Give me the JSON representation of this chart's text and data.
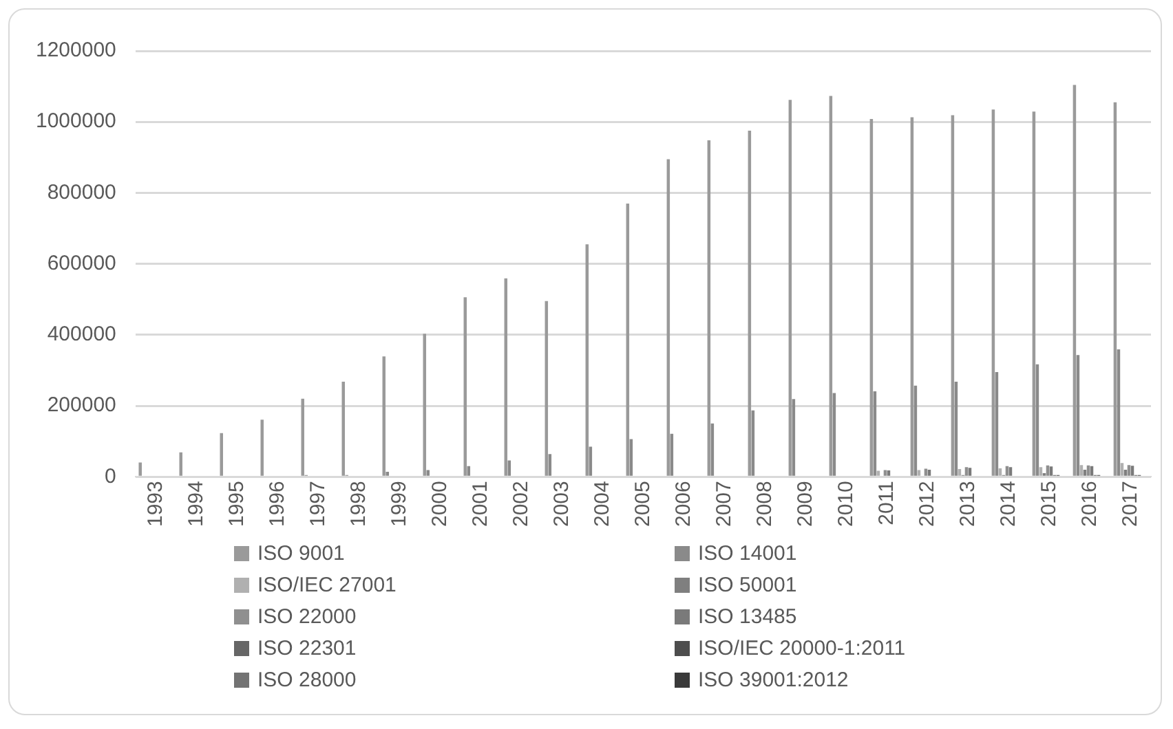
{
  "chart_data": {
    "type": "bar",
    "categories": [
      "1993",
      "1994",
      "1995",
      "1996",
      "1997",
      "1998",
      "1999",
      "2000",
      "2001",
      "2002",
      "2003",
      "2004",
      "2005",
      "2006",
      "2007",
      "2008",
      "2009",
      "2010",
      "2011",
      "2012",
      "2013",
      "2014",
      "2015",
      "2016",
      "2017"
    ],
    "series": [
      {
        "name": "ISO 9001",
        "color": "#9a9a9a",
        "values": [
          40000,
          69000,
          123000,
          161000,
          220000,
          268000,
          339000,
          403000,
          506000,
          559000,
          495000,
          655000,
          770000,
          895000,
          948000,
          975000,
          1062000,
          1073000,
          1008000,
          1013000,
          1019000,
          1035000,
          1029000,
          1104000,
          1055000
        ]
      },
      {
        "name": "ISO 14001",
        "color": "#8a8a8a",
        "values": [
          null,
          null,
          null,
          null,
          5000,
          5000,
          14000,
          19000,
          30000,
          46000,
          64000,
          85000,
          106000,
          121000,
          150000,
          187000,
          219000,
          236000,
          241000,
          257000,
          268000,
          295000,
          317000,
          343000,
          359000
        ]
      },
      {
        "name": "ISO/IEC 27001",
        "color": "#b0b0b0",
        "values": [
          null,
          null,
          null,
          null,
          null,
          null,
          null,
          null,
          null,
          null,
          null,
          null,
          null,
          null,
          null,
          null,
          null,
          null,
          17000,
          19000,
          22000,
          24000,
          27000,
          33000,
          39000
        ]
      },
      {
        "name": "ISO 50001",
        "color": "#7f7f7f",
        "values": [
          null,
          null,
          null,
          null,
          null,
          null,
          null,
          null,
          null,
          null,
          null,
          null,
          null,
          null,
          null,
          null,
          null,
          null,
          null,
          null,
          5000,
          5000,
          10000,
          20000,
          20000
        ]
      },
      {
        "name": "ISO 22000",
        "color": "#8f8f8f",
        "values": [
          null,
          null,
          null,
          null,
          null,
          null,
          null,
          null,
          null,
          null,
          null,
          null,
          null,
          null,
          null,
          null,
          null,
          null,
          19000,
          23000,
          27000,
          30000,
          32000,
          32000,
          33000
        ]
      },
      {
        "name": "ISO 13485",
        "color": "#7a7a7a",
        "values": [
          null,
          null,
          null,
          null,
          null,
          null,
          null,
          null,
          null,
          null,
          null,
          null,
          null,
          null,
          null,
          null,
          null,
          null,
          18000,
          20000,
          25000,
          27000,
          29000,
          30000,
          31000
        ]
      },
      {
        "name": "ISO 22301",
        "color": "#666666",
        "values": [
          null,
          null,
          null,
          null,
          null,
          null,
          null,
          null,
          null,
          null,
          null,
          null,
          null,
          null,
          null,
          null,
          null,
          null,
          null,
          null,
          null,
          null,
          5000,
          5000,
          5000
        ]
      },
      {
        "name": "ISO/IEC 20000-1:2011",
        "color": "#4d4d4d",
        "values": [
          null,
          null,
          null,
          null,
          null,
          null,
          null,
          null,
          null,
          null,
          null,
          null,
          null,
          null,
          null,
          null,
          null,
          null,
          null,
          null,
          null,
          null,
          5000,
          5000,
          5000
        ]
      },
      {
        "name": "ISO 28000",
        "color": "#737373",
        "values": [
          null,
          null,
          null,
          null,
          null,
          null,
          null,
          null,
          null,
          null,
          null,
          null,
          null,
          null,
          null,
          null,
          null,
          null,
          null,
          null,
          null,
          null,
          null,
          null,
          null
        ]
      },
      {
        "name": "ISO 39001:2012",
        "color": "#3a3a3a",
        "values": [
          null,
          null,
          null,
          null,
          null,
          null,
          null,
          null,
          null,
          null,
          null,
          null,
          null,
          null,
          null,
          null,
          null,
          null,
          null,
          null,
          null,
          null,
          null,
          null,
          null
        ]
      }
    ],
    "ylim": [
      0,
      1200000
    ],
    "yticks": [
      0,
      200000,
      400000,
      600000,
      800000,
      1000000,
      1200000
    ],
    "grid": "y",
    "legend": "bottom"
  }
}
